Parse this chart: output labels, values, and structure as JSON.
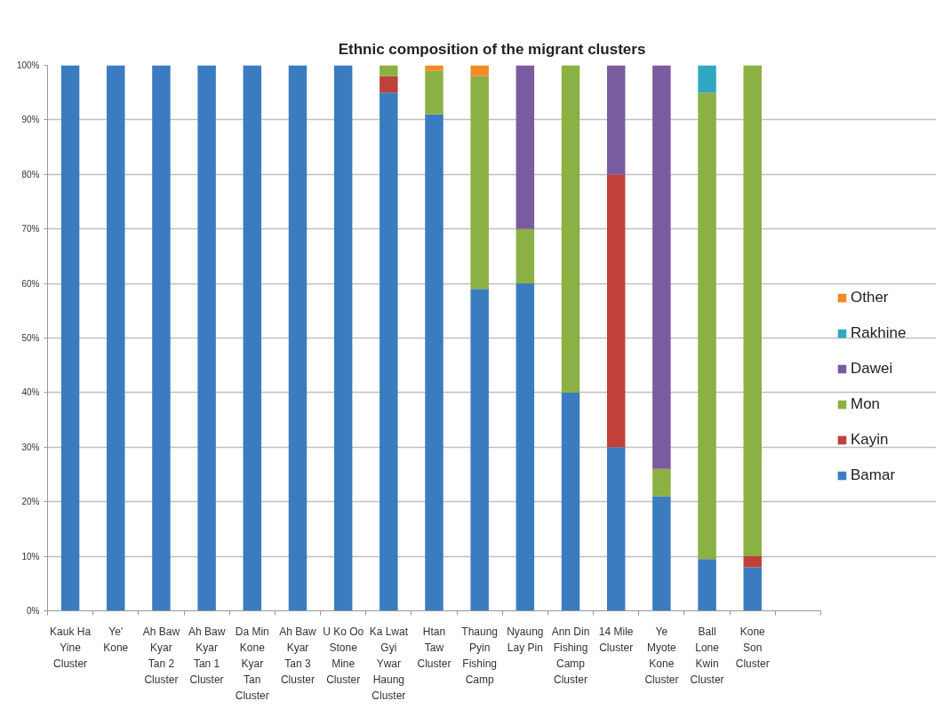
{
  "chart_data": {
    "type": "bar",
    "title": "Ethnic composition of the migrant clusters",
    "stacked": true,
    "categories": [
      "Kauk Ha Yine Cluster",
      "Ye' Kone",
      "Ah Baw Kyar Tan 2 Cluster",
      "Ah Baw Kyar Tan 1 Cluster",
      "Da Min Kone Kyar Tan Cluster",
      "Ah Baw Kyar Tan 3 Cluster",
      "U Ko Oo Stone Mine Cluster",
      "Ka Lwat Gyi Ywar Haung Cluster",
      "Htan Taw Cluster",
      "Thaung Pyin Fishing Camp",
      "Nyaung Lay Pin",
      "Ann Din Fishing Camp Cluster",
      "14 Mile Cluster",
      "Ye Myote Kone Cluster",
      "Ball Lone Kwin Cluster",
      "Kone Son Cluster",
      null
    ],
    "series": [
      {
        "name": "Bamar",
        "color": "#3b7cc0",
        "values": [
          100,
          100,
          100,
          100,
          100,
          100,
          100,
          95,
          91,
          59,
          60,
          40,
          30,
          21,
          9.5,
          8,
          null
        ]
      },
      {
        "name": "Kayin",
        "color": "#c0403a",
        "values": [
          0,
          0,
          0,
          0,
          0,
          0,
          0,
          3,
          0,
          0,
          0,
          0,
          50,
          0,
          0,
          2,
          null
        ]
      },
      {
        "name": "Mon",
        "color": "#8bb043",
        "values": [
          0,
          0,
          0,
          0,
          0,
          0,
          0,
          2,
          8,
          39,
          10,
          60,
          0,
          5,
          85.5,
          90,
          null
        ]
      },
      {
        "name": "Dawei",
        "color": "#7a5ba0",
        "values": [
          0,
          0,
          0,
          0,
          0,
          0,
          0,
          0,
          0,
          0,
          30,
          0,
          20,
          74,
          0,
          0,
          null
        ]
      },
      {
        "name": "Rakhine",
        "color": "#30a8c4",
        "values": [
          0,
          0,
          0,
          0,
          0,
          0,
          0,
          0,
          0,
          0,
          0,
          0,
          0,
          0,
          5,
          0,
          null
        ]
      },
      {
        "name": "Other",
        "color": "#f08b25",
        "values": [
          0,
          0,
          0,
          0,
          0,
          0,
          0,
          0,
          1,
          2,
          0,
          0,
          0,
          0,
          0,
          0,
          null
        ]
      }
    ],
    "ylim": [
      0,
      100
    ],
    "yticks": [
      {
        "value": 0,
        "label": "0%"
      },
      {
        "value": 10,
        "label": "10%"
      },
      {
        "value": 20,
        "label": "20%"
      },
      {
        "value": 30,
        "label": "30%"
      },
      {
        "value": 40,
        "label": "40%"
      },
      {
        "value": 50,
        "label": "50%"
      },
      {
        "value": 60,
        "label": "60%"
      },
      {
        "value": 70,
        "label": "70%"
      },
      {
        "value": 80,
        "label": "80%"
      },
      {
        "value": 90,
        "label": "90%"
      },
      {
        "value": 100,
        "label": "100%"
      }
    ],
    "grid": "y",
    "legend": "right"
  }
}
